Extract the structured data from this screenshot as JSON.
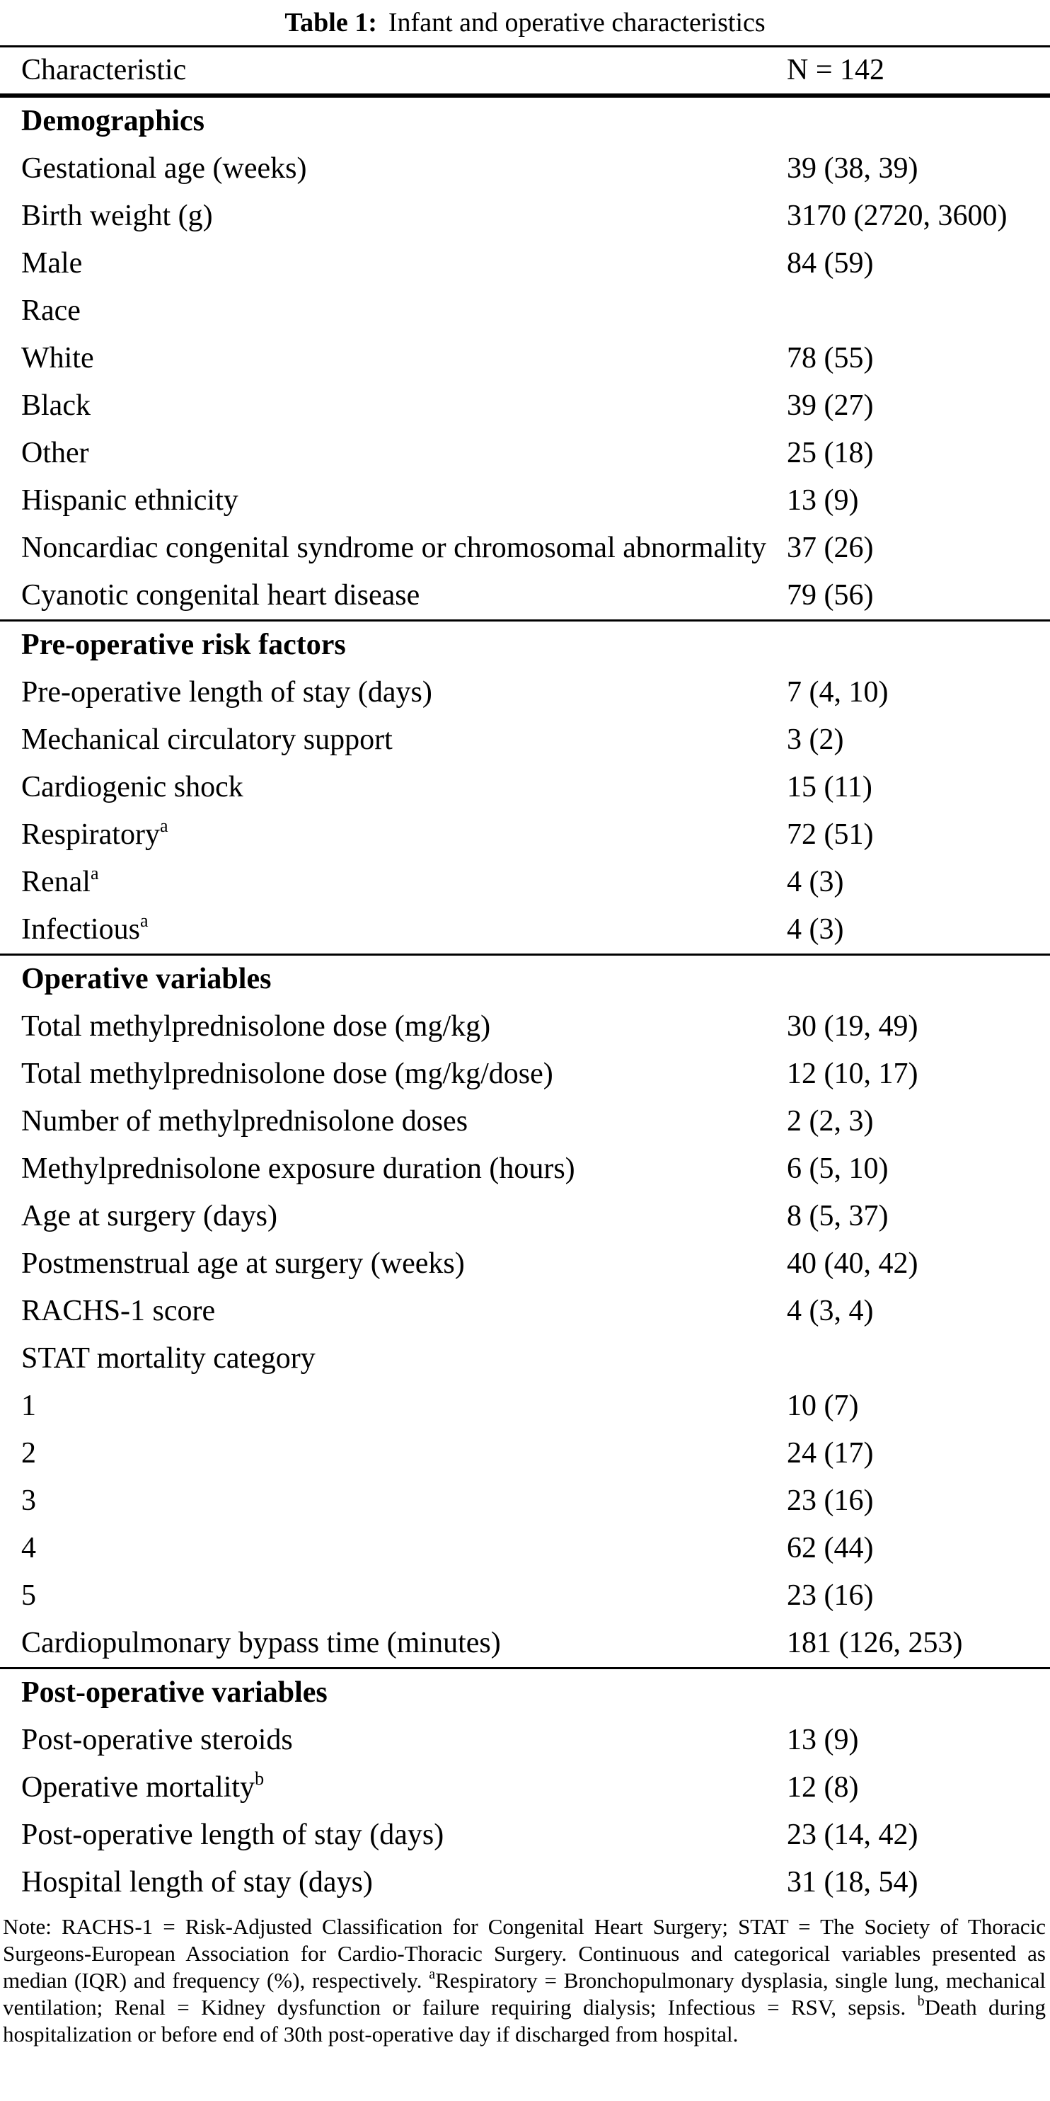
{
  "title": {
    "label": "Table 1:",
    "text": "Infant and operative characteristics"
  },
  "header": {
    "characteristic": "Characteristic",
    "n": "N = 142"
  },
  "sections": [
    {
      "header": "Demographics",
      "rows": [
        {
          "label": "Gestational age (weeks)",
          "value": "39 (38, 39)"
        },
        {
          "label": "Birth weight (g)",
          "value": "3170 (2720, 3600)"
        },
        {
          "label": "Male",
          "value": "84 (59)"
        },
        {
          "label": "Race",
          "value": ""
        },
        {
          "label": "White",
          "value": "78 (55)"
        },
        {
          "label": "Black",
          "value": "39 (27)"
        },
        {
          "label": "Other",
          "value": "25 (18)"
        },
        {
          "label": "Hispanic ethnicity",
          "value": "13 (9)"
        },
        {
          "label": "Noncardiac congenital syndrome or chromosomal abnormality",
          "value": "37 (26)"
        },
        {
          "label": "Cyanotic congenital heart disease",
          "value": "79 (56)"
        }
      ]
    },
    {
      "header": "Pre-operative risk factors",
      "rows": [
        {
          "label": "Pre-operative length of stay (days)",
          "value": "7 (4, 10)"
        },
        {
          "label": "Mechanical circulatory support",
          "value": "3 (2)"
        },
        {
          "label": "Cardiogenic shock",
          "value": "15 (11)"
        },
        {
          "label": "Respiratory",
          "sup": "a",
          "value": "72 (51)"
        },
        {
          "label": "Renal",
          "sup": "a",
          "value": "4 (3)"
        },
        {
          "label": "Infectious",
          "sup": "a",
          "value": "4 (3)"
        }
      ]
    },
    {
      "header": "Operative variables",
      "rows": [
        {
          "label": "Total methylprednisolone dose (mg/kg)",
          "value": "30 (19, 49)"
        },
        {
          "label": "Total methylprednisolone dose (mg/kg/dose)",
          "value": "12 (10, 17)"
        },
        {
          "label": "Number of methylprednisolone doses",
          "value": "2 (2, 3)"
        },
        {
          "label": "Methylprednisolone exposure duration (hours)",
          "value": "6 (5, 10)"
        },
        {
          "label": "Age at surgery (days)",
          "value": "8 (5, 37)"
        },
        {
          "label": "Postmenstrual age at surgery (weeks)",
          "value": "40 (40, 42)"
        },
        {
          "label": "RACHS-1 score",
          "value": "4 (3, 4)"
        },
        {
          "label": "STAT mortality category",
          "value": ""
        },
        {
          "label": "1",
          "value": "10 (7)"
        },
        {
          "label": "2",
          "value": "24 (17)"
        },
        {
          "label": "3",
          "value": "23 (16)"
        },
        {
          "label": "4",
          "value": "62 (44)"
        },
        {
          "label": "5",
          "value": "23 (16)"
        },
        {
          "label": "Cardiopulmonary bypass time (minutes)",
          "value": "181 (126, 253)"
        }
      ]
    },
    {
      "header": "Post-operative variables",
      "rows": [
        {
          "label": "Post-operative steroids",
          "value": "13 (9)"
        },
        {
          "label": "Operative mortality",
          "sup": "b",
          "value": "12 (8)"
        },
        {
          "label": "Post-operative length of stay (days)",
          "value": "23 (14, 42)"
        },
        {
          "label": "Hospital length of stay (days)",
          "value": "31 (18, 54)"
        }
      ]
    }
  ],
  "footnote": {
    "parts": [
      {
        "text": "Note: RACHS-1 = Risk-Adjusted Classification for Congenital Heart Surgery; STAT = The Society of Thoracic Surgeons-European Association for Cardio-Thoracic Surgery. Continuous and categorical variables presented as median (IQR) and frequency (%), respectively. "
      },
      {
        "sup": "a"
      },
      {
        "text": "Respiratory = Bronchopulmonary dysplasia, single lung, mechanical ventilation; Renal = Kidney dysfunction or failure requiring dialysis; Infectious = RSV, sepsis. "
      },
      {
        "sup": "b"
      },
      {
        "text": "Death during hospitalization or before end of 30th post-operative day if discharged from hospital."
      }
    ]
  },
  "colors": {
    "text": "#000000",
    "background": "#ffffff",
    "rule": "#000000"
  }
}
